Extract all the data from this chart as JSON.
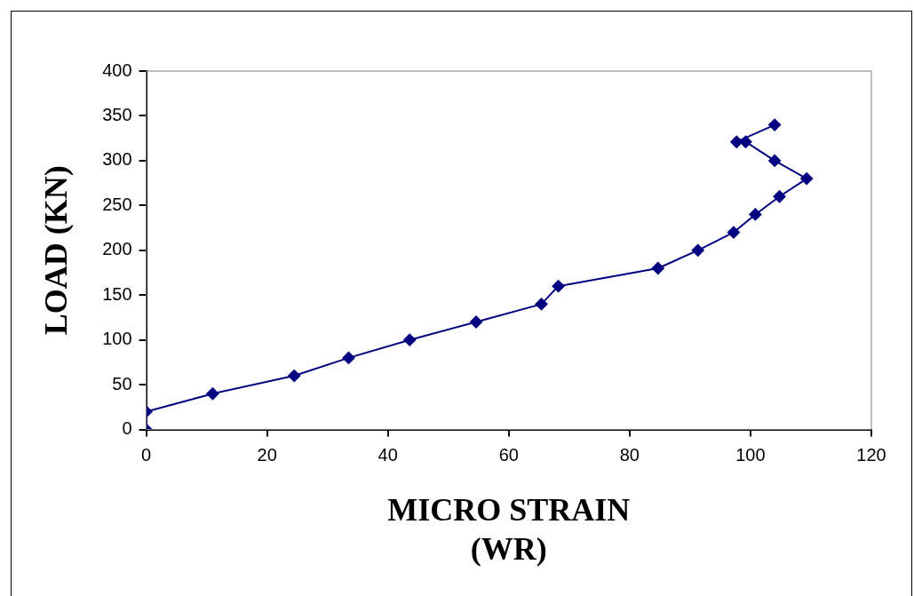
{
  "chart_data": {
    "type": "line",
    "xlabel": "MICRO STRAIN\n(WR)",
    "ylabel": "LOAD (KN)",
    "x": [
      0,
      0,
      11,
      24.5,
      33.5,
      43.6,
      54.6,
      65.4,
      68.2,
      84.7,
      91.3,
      97.2,
      100.8,
      104.8,
      109.3,
      104,
      99.2,
      97.7,
      104
    ],
    "series": [
      {
        "color": "#000080",
        "values": [
          0,
          20,
          40,
          60,
          80,
          100,
          120,
          140,
          160,
          180,
          200,
          220,
          240,
          260,
          280,
          300,
          321,
          321,
          340
        ]
      }
    ],
    "xlim": [
      0,
      120
    ],
    "xticks": [
      0,
      20,
      40,
      60,
      80,
      100,
      120
    ],
    "ylim": [
      0,
      400
    ],
    "yticks": [
      0,
      50,
      100,
      150,
      200,
      250,
      300,
      350,
      400
    ],
    "grid": false,
    "legend": false,
    "marker": "diamond",
    "line_style": "solid"
  }
}
